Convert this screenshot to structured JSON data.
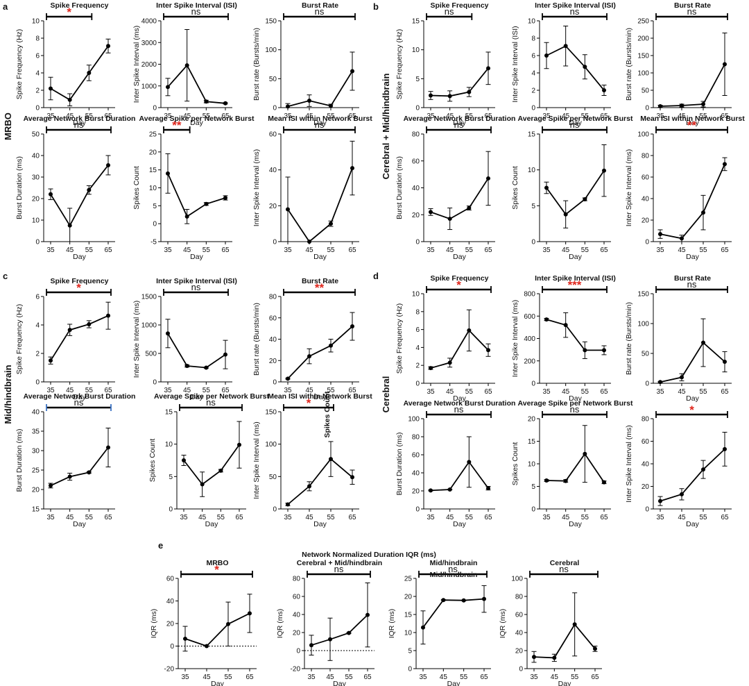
{
  "panel_labels": [
    "a",
    "b",
    "c",
    "d",
    "e"
  ],
  "group_labels": [
    "MRBO",
    "Cerebral + Mid/hindbrain",
    "Mid/hindbrain",
    "Cerebral"
  ],
  "panel_e_title": "Network Normalized Duration IQR (ms)",
  "colors": {
    "line": "#000000",
    "significant": "#e0261c",
    "bracket_end_c": "#3b73c4"
  },
  "chart_data": [
    {
      "panel": "a",
      "type": "line",
      "title": "Spike Frequency",
      "xlabel": "Day",
      "ylabel": "Spike Frequency (Hz)",
      "categories": [
        "35",
        "45",
        "55",
        "65"
      ],
      "values": [
        2.2,
        0.9,
        4.0,
        7.1
      ],
      "errors": [
        1.3,
        0.7,
        0.9,
        0.8
      ],
      "ylim": [
        0,
        10
      ],
      "yticks": [
        0,
        2,
        4,
        6,
        8,
        10
      ],
      "significance": "*",
      "sig_red": true,
      "bracket": [
        35,
        55
      ]
    },
    {
      "panel": "a",
      "type": "line",
      "title": "Inter Spike Interval (ISI)",
      "xlabel": "Day",
      "ylabel": "Inter Spike Interval (ms)",
      "categories": [
        "35",
        "45",
        "55",
        "65"
      ],
      "values": [
        950,
        1950,
        280,
        200
      ],
      "errors": [
        400,
        1650,
        60,
        30
      ],
      "ylim": [
        0,
        4000
      ],
      "yticks": [
        0,
        1000,
        2000,
        3000,
        4000
      ],
      "significance": "ns",
      "sig_red": false,
      "bracket": [
        35,
        65
      ]
    },
    {
      "panel": "a",
      "type": "line",
      "title": "Burst Rate",
      "xlabel": "Day",
      "ylabel": "Burst rate (Bursts/min)",
      "categories": [
        "35",
        "45",
        "55",
        "65"
      ],
      "values": [
        2,
        12,
        3,
        63
      ],
      "errors": [
        5,
        10,
        3,
        33
      ],
      "ylim": [
        0,
        150
      ],
      "yticks": [
        0,
        50,
        100,
        150
      ],
      "significance": "ns",
      "sig_red": false,
      "bracket": [
        35,
        65
      ]
    },
    {
      "panel": "a",
      "type": "line",
      "title": "Average Network Burst Duration",
      "xlabel": "Day",
      "ylabel": "Burst Duration (ms)",
      "categories": [
        "35",
        "45",
        "55",
        "65"
      ],
      "values": [
        22,
        7.5,
        24,
        35.5
      ],
      "errors": [
        2.5,
        8,
        2,
        4.5
      ],
      "ylim": [
        0,
        50
      ],
      "yticks": [
        0,
        10,
        20,
        30,
        40,
        50
      ],
      "significance": "ns",
      "sig_red": false,
      "bracket": [
        35,
        65
      ]
    },
    {
      "panel": "a",
      "type": "line",
      "title": "Average Spike per Network Burst",
      "xlabel": "Day",
      "ylabel": "Spikes Count",
      "categories": [
        "35",
        "45",
        "55",
        "65"
      ],
      "values": [
        14,
        2,
        5.5,
        7.2
      ],
      "errors": [
        5.5,
        2,
        0.4,
        0.6
      ],
      "ylim": [
        -5,
        25
      ],
      "yticks": [
        -5,
        0,
        5,
        10,
        15,
        20,
        25
      ],
      "significance": "**",
      "sig_red": true,
      "bracket": [
        35,
        45
      ]
    },
    {
      "panel": "a",
      "type": "line",
      "title": "Mean ISI within Network Burst",
      "xlabel": "Day",
      "ylabel": "Inter Spike Interval (ms)",
      "categories": [
        "35",
        "45",
        "55",
        "65"
      ],
      "values": [
        18,
        0,
        10,
        41
      ],
      "errors": [
        18,
        0,
        1.5,
        15
      ],
      "ylim": [
        0,
        60
      ],
      "yticks": [
        0,
        20,
        40,
        60
      ],
      "significance": "ns",
      "sig_red": false,
      "bracket": [
        35,
        65
      ]
    },
    {
      "panel": "b",
      "type": "line",
      "title": "Spike Frequency",
      "xlabel": "Day",
      "ylabel": "Spike Frequency (Hz)",
      "categories": [
        "35",
        "45",
        "55",
        "65"
      ],
      "values": [
        2.1,
        2.0,
        2.7,
        6.8
      ],
      "errors": [
        0.7,
        0.9,
        0.8,
        2.8
      ],
      "ylim": [
        0,
        15
      ],
      "yticks": [
        0,
        5,
        10,
        15
      ],
      "significance": "ns",
      "sig_red": false,
      "bracket": [
        35,
        55
      ]
    },
    {
      "panel": "b",
      "type": "line",
      "title": "Inter Spike Interval (ISI)",
      "xlabel": "Day",
      "ylabel": "Inter Spike Interval (ISI)",
      "categories": [
        "35",
        "45",
        "55",
        "65"
      ],
      "values": [
        6.0,
        7.1,
        4.7,
        2.0
      ],
      "errors": [
        1.5,
        2.3,
        1.4,
        0.6
      ],
      "ylim": [
        0,
        10
      ],
      "yticks": [
        0,
        2,
        4,
        6,
        8,
        10
      ],
      "significance": "ns",
      "sig_red": false,
      "bracket": [
        35,
        65
      ]
    },
    {
      "panel": "b",
      "type": "line",
      "title": "Burst Rate",
      "xlabel": "Day",
      "ylabel": "Burst rate (Bursts/min)",
      "categories": [
        "35",
        "45",
        "55",
        "65"
      ],
      "values": [
        4,
        6,
        10,
        125
      ],
      "errors": [
        3,
        4,
        8,
        90
      ],
      "ylim": [
        0,
        250
      ],
      "yticks": [
        0,
        50,
        100,
        150,
        200,
        250
      ],
      "significance": "ns",
      "sig_red": false,
      "bracket": [
        35,
        65
      ]
    },
    {
      "panel": "b",
      "type": "line",
      "title": "Average Network Burst Duration",
      "xlabel": "Day",
      "ylabel": "Burst Duration (ms)",
      "categories": [
        "35",
        "45",
        "55",
        "65"
      ],
      "values": [
        22,
        17,
        25,
        47
      ],
      "errors": [
        2.5,
        8,
        1.5,
        20
      ],
      "ylim": [
        0,
        80
      ],
      "yticks": [
        0,
        20,
        40,
        60,
        80
      ],
      "significance": "ns",
      "sig_red": false,
      "bracket": [
        35,
        65
      ]
    },
    {
      "panel": "b",
      "type": "line",
      "title": "Average Spike per Network Burst",
      "xlabel": "Day",
      "ylabel": "Spikes Count",
      "categories": [
        "35",
        "45",
        "55",
        "65"
      ],
      "values": [
        7.5,
        3.8,
        5.9,
        9.9
      ],
      "errors": [
        0.8,
        1.9,
        0.2,
        3.6
      ],
      "ylim": [
        0,
        15
      ],
      "yticks": [
        0,
        5,
        10,
        15
      ],
      "significance": "ns",
      "sig_red": false,
      "bracket": [
        35,
        65
      ]
    },
    {
      "panel": "b",
      "type": "line",
      "title": "Mean ISI within Network Burst",
      "xlabel": "Day",
      "ylabel": "Inter Spike Interval (ms)",
      "categories": [
        "35",
        "45",
        "55",
        "65"
      ],
      "values": [
        7,
        3,
        27,
        72
      ],
      "errors": [
        4,
        3,
        16,
        6
      ],
      "ylim": [
        0,
        100
      ],
      "yticks": [
        0,
        20,
        40,
        60,
        80,
        100
      ],
      "significance": "**",
      "sig_red": true,
      "bracket": [
        35,
        65
      ]
    },
    {
      "panel": "c",
      "type": "line",
      "title": "Spike Frequency",
      "xlabel": "Day",
      "ylabel": "Spike Frequency (Hz)",
      "categories": [
        "35",
        "45",
        "55",
        "65"
      ],
      "values": [
        1.5,
        3.65,
        4.05,
        4.65
      ],
      "errors": [
        0.25,
        0.4,
        0.25,
        0.95
      ],
      "ylim": [
        0,
        6
      ],
      "yticks": [
        0,
        2,
        4,
        6
      ],
      "significance": "*",
      "sig_red": true,
      "bracket": [
        35,
        65
      ]
    },
    {
      "panel": "c",
      "type": "line",
      "title": "Inter Spike Interval (ISI)",
      "xlabel": "Day",
      "ylabel": "Inter Spike Interval (ms)",
      "categories": [
        "35",
        "45",
        "55",
        "65"
      ],
      "values": [
        850,
        280,
        250,
        480
      ],
      "errors": [
        250,
        20,
        10,
        250
      ],
      "ylim": [
        0,
        1500
      ],
      "yticks": [
        0,
        500,
        1000,
        1500
      ],
      "significance": "ns",
      "sig_red": false,
      "bracket": [
        35,
        65
      ]
    },
    {
      "panel": "c",
      "type": "line",
      "title": "Burst Rate",
      "xlabel": "Day",
      "ylabel": "Burst rate (Bursts/min)",
      "categories": [
        "35",
        "45",
        "55",
        "65"
      ],
      "values": [
        3,
        24,
        34,
        52
      ],
      "errors": [
        0.5,
        7,
        6,
        13
      ],
      "ylim": [
        0,
        80
      ],
      "yticks": [
        0,
        20,
        40,
        60,
        80
      ],
      "significance": "**",
      "sig_red": true,
      "bracket": [
        35,
        65
      ]
    },
    {
      "panel": "c",
      "type": "line",
      "title": "Average Network Burst Duration",
      "xlabel": "Day",
      "ylabel": "Burst Duration (ms)",
      "categories": [
        "35",
        "45",
        "55",
        "65"
      ],
      "values": [
        21,
        23.3,
        24.4,
        30.8
      ],
      "errors": [
        0.6,
        0.9,
        0.2,
        5
      ],
      "ylim": [
        15,
        40
      ],
      "yticks": [
        15,
        20,
        25,
        30,
        35,
        40
      ],
      "significance": "ns",
      "sig_red": false,
      "bracket": [
        35,
        65
      ]
    },
    {
      "panel": "c",
      "type": "line",
      "title": "Average Spike per Network Burst",
      "xlabel": "Day",
      "ylabel": "Spikes Count",
      "categories": [
        "35",
        "45",
        "55",
        "65"
      ],
      "values": [
        7.5,
        3.8,
        5.9,
        9.9
      ],
      "errors": [
        0.8,
        1.9,
        0.2,
        3.6
      ],
      "ylim": [
        0,
        15
      ],
      "yticks": [
        0,
        5,
        10,
        15
      ],
      "significance": "ns",
      "sig_red": false,
      "bracket": [
        35,
        65
      ]
    },
    {
      "panel": "c",
      "type": "line",
      "title": "Mean ISI within Network Burst",
      "xlabel": "Day",
      "ylabel": "Inter Spike Interval (ms)",
      "annotation": "Spikes Count",
      "categories": [
        "35",
        "45",
        "55",
        "65"
      ],
      "values": [
        7,
        35,
        77,
        49
      ],
      "errors": [
        2,
        7,
        27,
        11
      ],
      "ylim": [
        0,
        150
      ],
      "yticks": [
        0,
        50,
        100,
        150
      ],
      "significance": "*",
      "sig_red": true,
      "bracket": [
        35,
        55
      ]
    },
    {
      "panel": "d",
      "type": "line",
      "title": "Spike Frequency",
      "xlabel": "Day",
      "ylabel": "Spike Frequency (Hz)",
      "categories": [
        "35",
        "45",
        "55",
        "65"
      ],
      "values": [
        1.7,
        2.3,
        5.9,
        3.7
      ],
      "errors": [
        0.15,
        0.5,
        2.3,
        0.7
      ],
      "ylim": [
        0,
        10
      ],
      "yticks": [
        0,
        2,
        4,
        6,
        8,
        10
      ],
      "significance": "*",
      "sig_red": true,
      "bracket": [
        35,
        65
      ]
    },
    {
      "panel": "d",
      "type": "line",
      "title": "Inter Spike Interval (ISI)",
      "xlabel": "Day",
      "ylabel": "Inter Spike Interval (ms)",
      "categories": [
        "35",
        "45",
        "55",
        "65"
      ],
      "values": [
        570,
        520,
        295,
        295
      ],
      "errors": [
        10,
        110,
        75,
        40
      ],
      "ylim": [
        0,
        800
      ],
      "yticks": [
        0,
        200,
        400,
        600,
        800
      ],
      "significance": "***",
      "sig_red": true,
      "bracket": [
        35,
        65
      ]
    },
    {
      "panel": "d",
      "type": "line",
      "title": "Burst Rate",
      "xlabel": "Day",
      "ylabel": "Burst rate (Bursts/min)",
      "categories": [
        "35",
        "45",
        "55",
        "65"
      ],
      "values": [
        2,
        10,
        68,
        36
      ],
      "errors": [
        1,
        6,
        40,
        17
      ],
      "ylim": [
        0,
        150
      ],
      "yticks": [
        0,
        50,
        100,
        150
      ],
      "significance": "ns",
      "sig_red": false,
      "bracket": [
        35,
        65
      ]
    },
    {
      "panel": "d",
      "type": "line",
      "title": "Average Network Burst Duration",
      "xlabel": "Day",
      "ylabel": "Burst Duration (ms)",
      "categories": [
        "35",
        "45",
        "55",
        "65"
      ],
      "values": [
        20.5,
        21.5,
        52,
        23
      ],
      "errors": [
        0.5,
        0.5,
        28,
        2
      ],
      "ylim": [
        0,
        100
      ],
      "yticks": [
        0,
        20,
        40,
        60,
        80,
        100
      ],
      "significance": "ns",
      "sig_red": false,
      "bracket": [
        35,
        65
      ]
    },
    {
      "panel": "d",
      "type": "line",
      "title": "Average Spike per Network Burst",
      "xlabel": "Day",
      "ylabel": "Spikes Count",
      "categories": [
        "35",
        "45",
        "55",
        "65"
      ],
      "values": [
        6.3,
        6.2,
        12.2,
        5.9
      ],
      "errors": [
        0.2,
        0.3,
        6.3,
        0.3
      ],
      "ylim": [
        0,
        20
      ],
      "yticks": [
        0,
        5,
        10,
        15,
        20
      ],
      "significance": "ns",
      "sig_red": false,
      "bracket": [
        35,
        65
      ]
    },
    {
      "panel": "d",
      "type": "line",
      "title": "",
      "xlabel": "Day",
      "ylabel": "Inter Spike Interval (ms)",
      "categories": [
        "35",
        "45",
        "55",
        "65"
      ],
      "values": [
        7,
        13,
        35,
        53
      ],
      "errors": [
        4,
        5,
        8,
        15
      ],
      "ylim": [
        0,
        80
      ],
      "yticks": [
        0,
        20,
        40,
        60,
        80
      ],
      "significance": "*",
      "sig_red": true,
      "bracket": [
        35,
        65
      ]
    },
    {
      "panel": "e",
      "type": "line",
      "title": "MRBO",
      "xlabel": "Day",
      "ylabel": "IQR (ms)",
      "categories": [
        "35",
        "45",
        "55",
        "65"
      ],
      "values": [
        6.5,
        0,
        19.5,
        29
      ],
      "errors": [
        11,
        0,
        19.5,
        17
      ],
      "ylim": [
        -20,
        60
      ],
      "yticks": [
        -20,
        0,
        20,
        40,
        60
      ],
      "zero_line": true,
      "significance": "*",
      "sig_red": true,
      "bracket": [
        35,
        65
      ]
    },
    {
      "panel": "e",
      "type": "line",
      "title": "Cerebral + Mid/hindbrain",
      "xlabel": "Day",
      "ylabel": "IQR (ms)",
      "categories": [
        "35",
        "45",
        "55",
        "65"
      ],
      "values": [
        6,
        12.5,
        19.5,
        39.5
      ],
      "errors": [
        11,
        23.5,
        0.5,
        35.5
      ],
      "ylim": [
        -20,
        80
      ],
      "yticks": [
        -20,
        0,
        20,
        40,
        60,
        80
      ],
      "zero_line": true,
      "significance": "ns",
      "sig_red": false,
      "bracket": [
        35,
        65
      ]
    },
    {
      "panel": "e",
      "type": "line",
      "title": "Mid/hindbrain",
      "xlabel": "Day",
      "ylabel": "IQR (ms)",
      "annotation": "Mid/hindbrain",
      "categories": [
        "35",
        "45",
        "55",
        "65"
      ],
      "values": [
        11.4,
        19,
        18.9,
        19.3
      ],
      "errors": [
        4.6,
        0.1,
        0.1,
        3.7
      ],
      "ylim": [
        0,
        25
      ],
      "yticks": [
        0,
        5,
        10,
        15,
        20,
        25
      ],
      "significance": "ns",
      "sig_red": false,
      "bracket": [
        35,
        65
      ]
    },
    {
      "panel": "e",
      "type": "line",
      "title": "Cerebral",
      "xlabel": "Day",
      "ylabel": "IQR (ms)",
      "categories": [
        "35",
        "45",
        "55",
        "65"
      ],
      "values": [
        13,
        12,
        49,
        22
      ],
      "errors": [
        6,
        4,
        35,
        3
      ],
      "ylim": [
        0,
        100
      ],
      "yticks": [
        0,
        20,
        40,
        60,
        80,
        100
      ],
      "significance": "ns",
      "sig_red": false,
      "bracket": [
        35,
        65
      ]
    }
  ]
}
